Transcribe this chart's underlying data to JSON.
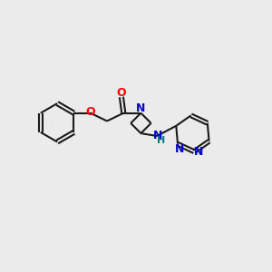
{
  "background_color": "#ebebeb",
  "bond_color": "#1a1a1a",
  "bond_width": 1.5,
  "o_color": "#ff0000",
  "n_color": "#0000cc",
  "nh_n_color": "#0000cc",
  "h_color": "#008080",
  "figsize": [
    3.0,
    3.0
  ],
  "dpi": 100,
  "xlim": [
    0,
    10
  ],
  "ylim": [
    0,
    10
  ]
}
